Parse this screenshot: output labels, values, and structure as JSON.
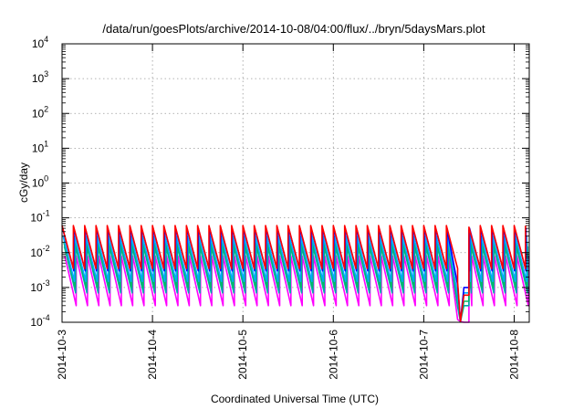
{
  "chart_data": {
    "type": "line",
    "title": "/data/run/goesPlots/archive/2014-10-08/04:00/flux/../bryn/5daysMars.plot",
    "xlabel": "Coordinated Universal Time (UTC)",
    "ylabel": "cGy/day",
    "y_scale": "log",
    "ylim": [
      0.0001,
      10000
    ],
    "y_ticks": [
      {
        "base": "10",
        "exp": "-4"
      },
      {
        "base": "10",
        "exp": "-3"
      },
      {
        "base": "10",
        "exp": "-2"
      },
      {
        "base": "10",
        "exp": "-1"
      },
      {
        "base": "10",
        "exp": "0"
      },
      {
        "base": "10",
        "exp": "1"
      },
      {
        "base": "10",
        "exp": "2"
      },
      {
        "base": "10",
        "exp": "3"
      },
      {
        "base": "10",
        "exp": "4"
      }
    ],
    "x_ticks": [
      "2014-10-3",
      "2014-10-4",
      "2014-10-5",
      "2014-10-6",
      "2014-10-7",
      "2014-10-8"
    ],
    "xlim": [
      "2014-10-03 00:00",
      "2014-10-08 04:00"
    ],
    "grid": true,
    "legend": "none",
    "pattern": {
      "period_hours": 3,
      "peak_value": 0.05,
      "gap_start": "2014-10-07 09:00",
      "gap_end": "2014-10-07 12:00",
      "gap_min_value": 0.0001
    },
    "series": [
      {
        "color": "#ff0000",
        "trough": 0.0035,
        "peak": 0.06,
        "gap_level": 0.0006
      },
      {
        "color": "#0000ff",
        "trough": 0.003,
        "peak": 0.05,
        "gap_level": 0.001
      },
      {
        "color": "#00aaff",
        "trough": 0.0015,
        "peak": 0.03,
        "gap_level": 0.0007
      },
      {
        "color": "#00bb66",
        "trough": 0.001,
        "peak": 0.02,
        "gap_level": 0.0004
      },
      {
        "color": "#00aaaa",
        "trough": 0.0007,
        "peak": 0.015,
        "gap_level": 0.0003
      },
      {
        "color": "#ff00ff",
        "trough": 0.0003,
        "peak": 0.008,
        "gap_level": 0.0001
      }
    ]
  }
}
